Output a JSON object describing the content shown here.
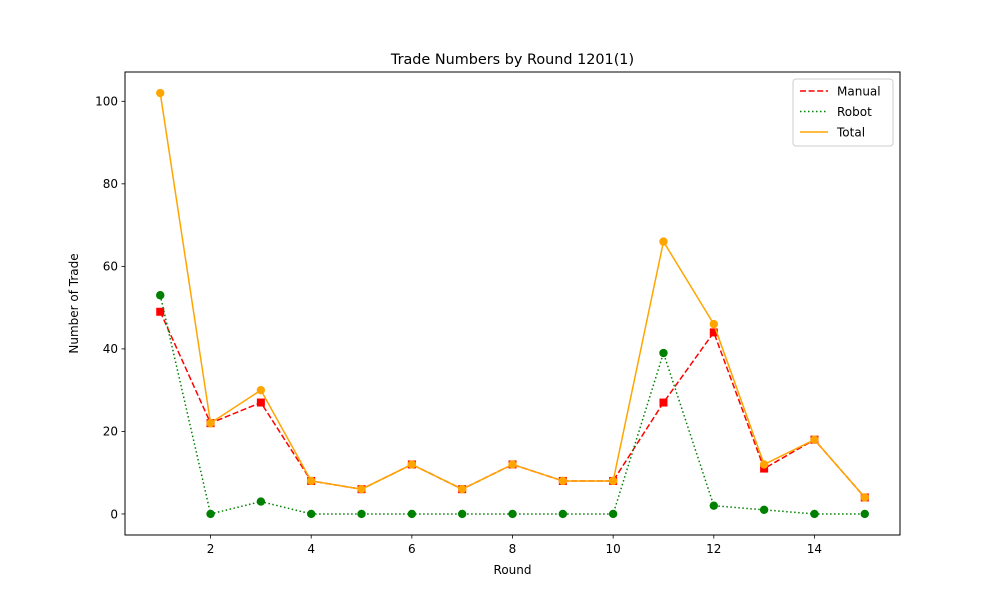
{
  "chart_data": {
    "type": "line",
    "title": "Trade Numbers by Round 1201(1)",
    "xlabel": "Round",
    "ylabel": "Number of Trade",
    "x": [
      1,
      2,
      3,
      4,
      5,
      6,
      7,
      8,
      9,
      10,
      11,
      12,
      13,
      14,
      15
    ],
    "xlim": [
      0.3,
      15.7
    ],
    "ylim": [
      -5.1,
      107.1
    ],
    "xticks": [
      2,
      4,
      6,
      8,
      10,
      12,
      14
    ],
    "yticks": [
      0,
      20,
      40,
      60,
      80,
      100
    ],
    "grid": false,
    "legend_position": "top-right",
    "series": [
      {
        "name": "Manual",
        "values": [
          49,
          22,
          27,
          8,
          6,
          12,
          6,
          12,
          8,
          8,
          27,
          44,
          11,
          18,
          4
        ],
        "color": "#ff0000",
        "line_style": "dashed",
        "marker": "square"
      },
      {
        "name": "Robot",
        "values": [
          53,
          0,
          3,
          0,
          0,
          0,
          0,
          0,
          0,
          0,
          39,
          2,
          1,
          0,
          0
        ],
        "color": "#008000",
        "line_style": "dotted",
        "marker": "circle"
      },
      {
        "name": "Total",
        "values": [
          102,
          22,
          30,
          8,
          6,
          12,
          6,
          12,
          8,
          8,
          66,
          46,
          12,
          18,
          4
        ],
        "color": "#ffa500",
        "line_style": "solid",
        "marker": "circle"
      }
    ]
  }
}
